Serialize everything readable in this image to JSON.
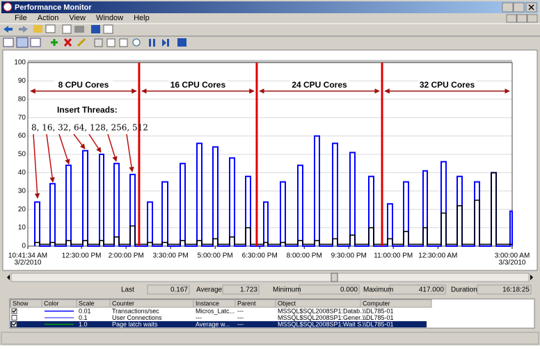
{
  "window": {
    "title": "Performance Monitor",
    "menu": [
      "File",
      "Action",
      "View",
      "Window",
      "Help"
    ]
  },
  "chart_data": {
    "type": "line",
    "x": [
      10.927,
      10.927,
      11.091,
      11.091,
      11.443,
      11.443,
      11.607,
      11.607,
      11.982,
      11.982,
      12.146,
      12.146,
      12.544,
      12.544,
      12.708,
      12.708,
      13.106,
      13.106,
      13.247,
      13.247,
      13.598,
      13.598,
      13.762,
      13.762,
      14.137,
      14.137,
      14.301,
      14.301,
      14.723,
      14.723,
      14.887,
      14.887,
      15.215,
      15.215,
      15.402,
      15.402,
      15.824,
      15.824,
      15.988,
      15.988,
      16.387,
      16.387,
      16.551,
      16.551,
      16.925,
      16.925,
      17.089,
      17.089,
      17.488,
      17.488,
      17.652,
      17.652,
      18.027,
      18.027,
      18.191,
      18.191,
      18.636,
      18.636,
      18.776,
      18.776,
      19.198,
      19.198,
      19.362,
      19.362,
      19.784,
      19.784,
      19.948,
      19.948,
      20.346,
      20.346,
      20.51,
      20.51,
      20.955,
      20.955,
      21.119,
      21.119,
      21.541,
      21.541,
      21.705,
      21.705,
      22.174,
      22.174,
      22.338,
      22.338,
      22.806,
      22.806,
      22.97,
      22.97,
      23.345,
      23.345,
      23.509,
      23.509,
      24.001,
      24.001,
      24.142,
      24.142,
      24.61,
      24.61,
      24.774,
      24.774,
      25.149,
      25.149,
      25.313,
      25.313,
      25.735,
      25.735,
      25.899,
      25.899,
      26.297,
      26.297,
      26.461,
      26.461,
      26.93,
      26.93,
      27,
      27
    ],
    "series": [
      {
        "name": "Transactions/sec",
        "color": "#0000ff",
        "values": [
          0,
          24,
          24,
          0,
          0,
          34,
          34,
          0,
          0,
          44,
          44,
          0,
          0,
          52,
          52,
          0,
          0,
          50,
          50,
          0,
          0,
          45,
          45,
          0,
          0,
          39,
          39,
          0,
          0,
          24,
          24,
          0,
          0,
          35,
          35,
          0,
          0,
          45,
          45,
          0,
          0,
          56,
          56,
          0,
          0,
          54,
          54,
          0,
          0,
          48,
          48,
          0,
          0,
          38,
          38,
          0,
          0,
          24,
          24,
          0,
          0,
          35,
          35,
          0,
          0,
          44,
          44,
          0,
          0,
          60,
          60,
          0,
          0,
          56,
          56,
          0,
          0,
          51,
          51,
          0,
          0,
          38,
          38,
          0,
          0,
          23,
          23,
          0,
          0,
          35,
          35,
          0,
          0,
          41,
          41,
          0,
          0,
          46,
          46,
          0,
          0,
          38,
          38,
          0,
          0,
          35,
          35,
          0,
          0,
          40,
          40,
          0,
          0,
          19,
          19,
          0
        ]
      },
      {
        "name": "Page latch waits",
        "color": "#000000",
        "values": [
          1,
          2,
          2,
          1,
          1,
          2,
          2,
          1,
          1,
          3,
          3,
          1,
          1,
          3,
          3,
          1,
          1,
          3,
          3,
          1,
          1,
          5,
          5,
          1,
          1,
          11,
          11,
          1,
          1,
          2,
          2,
          1,
          1,
          2,
          2,
          1,
          1,
          3,
          3,
          1,
          1,
          3,
          3,
          1,
          1,
          4,
          4,
          1,
          1,
          5,
          5,
          1,
          1,
          10,
          10,
          1,
          1,
          2,
          2,
          1,
          1,
          2,
          2,
          1,
          1,
          3,
          3,
          1,
          1,
          3,
          3,
          1,
          1,
          4,
          4,
          1,
          1,
          6,
          6,
          1,
          1,
          10,
          10,
          1,
          1,
          4,
          4,
          1,
          1,
          8,
          8,
          1,
          1,
          10,
          10,
          1,
          1,
          18,
          18,
          1,
          1,
          22,
          22,
          1,
          1,
          25,
          25,
          1,
          1,
          40,
          40,
          1,
          1,
          1,
          1,
          1
        ]
      }
    ],
    "xlim": [
      10.6928,
      27
    ],
    "ylim": [
      0,
      100
    ],
    "yticks": [
      0,
      10,
      20,
      30,
      40,
      50,
      60,
      70,
      80,
      90,
      100
    ],
    "xticks": [
      {
        "value": 10.6928,
        "label": "10:41:34 AM"
      },
      {
        "value": 12.5,
        "label": "12:30:00 PM"
      },
      {
        "value": 14,
        "label": "2:00:00 PM"
      },
      {
        "value": 15.5,
        "label": "3:30:00 PM"
      },
      {
        "value": 17,
        "label": "5:00:00 PM"
      },
      {
        "value": 18.5,
        "label": "6:30:00 PM"
      },
      {
        "value": 20,
        "label": "8:00:00 PM"
      },
      {
        "value": 21.5,
        "label": "9:30:00 PM"
      },
      {
        "value": 23,
        "label": "11:00:00 PM"
      },
      {
        "value": 24.5,
        "label": "12:30:00 AM"
      },
      {
        "value": 27,
        "label": "3:00:00 AM"
      }
    ],
    "start_date": "3/2/2010",
    "end_date": "3/3/2010",
    "grid": true,
    "dividers": [
      14.44,
      18.4,
      22.62
    ],
    "phase_labels": [
      "8 CPU Cores",
      "16 CPU Cores",
      "24 CPU Cores",
      "32 CPU Cores"
    ],
    "threads_title": "Insert Threads:",
    "threads_list": "8, 16, 32, 64, 128, 256, 512"
  },
  "stats": [
    {
      "label": "Last",
      "value": "0.167"
    },
    {
      "label": "Average",
      "value": "1.723"
    },
    {
      "label": "Minimum",
      "value": "0.000"
    },
    {
      "label": "Maximum",
      "value": "417.000"
    },
    {
      "label": "Duration",
      "value": "16:18:25"
    }
  ],
  "legend": {
    "headers": [
      "Show",
      "Color",
      "Scale",
      "Counter",
      "Instance",
      "Parent",
      "Object",
      "Computer"
    ],
    "rows": [
      {
        "show": true,
        "color": "#0000ff",
        "selected": false,
        "cells": [
          "0.01",
          "Transactions/sec",
          "Micros_Latc...",
          "---",
          "MSSQL$SQL2008SP1:Datab...",
          "\\\\DL785-01"
        ]
      },
      {
        "show": false,
        "color": "#6060ff",
        "selected": false,
        "cells": [
          "0.1",
          "User Connections",
          "---",
          "---",
          "MSSQL$SQL2008SP1:Gener...",
          "\\\\DL785-01"
        ]
      },
      {
        "show": true,
        "color": "#00a000",
        "selected": true,
        "cells": [
          "1.0",
          "Page latch waits",
          "Average w...",
          "---",
          "MSSQL$SQL2008SP1:Wait S...",
          "\\\\DL785-01"
        ]
      }
    ]
  }
}
